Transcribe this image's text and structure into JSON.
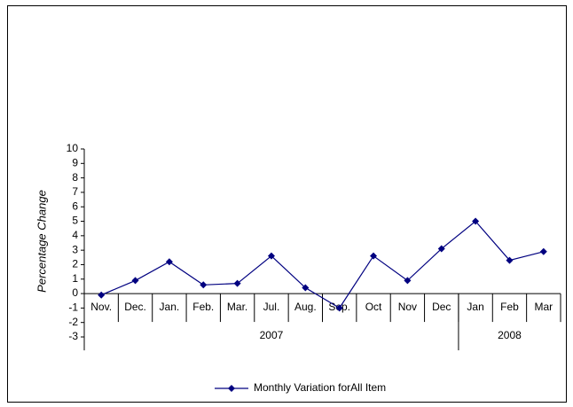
{
  "chart_data": {
    "type": "line",
    "ylabel": "Percentage Change",
    "categories": [
      "Nov.",
      "Dec.",
      "Jan.",
      "Feb.",
      "Mar.",
      "Jul.",
      "Aug.",
      "Sep.",
      "Oct",
      "Nov",
      "Dec",
      "Jan",
      "Feb",
      "Mar"
    ],
    "groups": [
      {
        "label": "2007",
        "count": 11
      },
      {
        "label": "2008",
        "count": 3
      }
    ],
    "series": [
      {
        "name": "Monthly Variation forAll Item",
        "color": "#000080",
        "values": [
          -0.1,
          0.9,
          2.2,
          0.6,
          0.7,
          2.6,
          0.4,
          -1.0,
          2.6,
          0.9,
          3.1,
          5.0,
          2.3,
          2.9
        ]
      }
    ],
    "ylim": [
      -3,
      10
    ],
    "yticks": [
      -3,
      -2,
      -1,
      0,
      1,
      2,
      3,
      4,
      5,
      6,
      7,
      8,
      9,
      10
    ],
    "legend": "bottom"
  }
}
